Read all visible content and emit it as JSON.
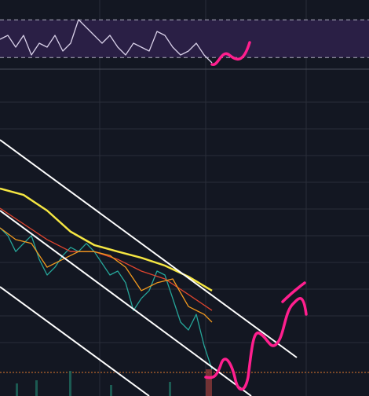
{
  "chart_data": [
    {
      "type": "line",
      "xlim": [
        0,
        470
      ],
      "ylim": [
        16,
        91
      ],
      "yticks": [
        30,
        70
      ],
      "grid": true,
      "band_color": "#2a1f45",
      "series": [
        {
          "color": "#d8d0e8",
          "x": [
            0,
            10,
            20,
            30,
            40,
            50,
            60,
            70,
            80,
            90,
            100,
            110,
            120,
            130,
            140,
            150,
            160,
            170,
            180,
            190,
            200,
            210,
            220,
            230,
            240,
            250,
            260,
            270
          ],
          "values": [
            49.3,
            53.5,
            41,
            53.5,
            32.7,
            45.2,
            41,
            53.5,
            36.8,
            45.2,
            70.2,
            61.8,
            53.5,
            45.2,
            53.5,
            41,
            32.7,
            45.2,
            41,
            36.8,
            57.7,
            53.5,
            41,
            32.7,
            36.8,
            45.2,
            32.7,
            24.3
          ]
        }
      ]
    },
    {
      "type": "line",
      "xlim": [
        0,
        470
      ],
      "ylim": [
        0,
        100
      ],
      "series": [
        {
          "color": "#26a69a",
          "x": [
            0,
            10,
            20,
            30,
            40,
            50,
            60,
            70,
            80,
            90,
            100,
            110,
            120,
            130,
            140,
            150,
            160,
            170,
            180,
            190,
            200,
            210,
            220,
            230,
            240,
            250,
            260,
            270
          ],
          "values": [
            51.7,
            49.3,
            44.4,
            46.9,
            49.3,
            42.0,
            37.2,
            39.6,
            43.2,
            45.7,
            44.4,
            46.9,
            44.4,
            40.8,
            37.2,
            38.4,
            34.8,
            26.3,
            30.0,
            32.4,
            38.4,
            37.2,
            30.0,
            22.7,
            20.3,
            25.1,
            15.5,
            8.2
          ]
        },
        {
          "color": "#f5e642",
          "x": [
            0,
            30,
            60,
            90,
            120,
            150,
            180,
            210,
            240,
            270
          ],
          "values": [
            63.8,
            61.8,
            57.0,
            50.5,
            46.4,
            44.4,
            42.5,
            40.1,
            36.7,
            32.4
          ]
        },
        {
          "color": "#e0452e",
          "x": [
            0,
            30,
            60,
            90,
            120,
            150,
            180,
            210,
            240,
            270
          ],
          "values": [
            57.7,
            52.9,
            48.1,
            44.4,
            44.4,
            42.0,
            38.4,
            36.0,
            31.2,
            26.3
          ]
        },
        {
          "color": "#f39a1e",
          "x": [
            0,
            20,
            40,
            60,
            80,
            100,
            120,
            140,
            160,
            180,
            200,
            220,
            240,
            260,
            270
          ],
          "values": [
            51.7,
            48.1,
            46.9,
            39.6,
            42.0,
            44.4,
            44.4,
            43.2,
            39.6,
            32.4,
            34.8,
            36.0,
            27.5,
            25.1,
            22.7
          ]
        }
      ]
    }
  ]
}
